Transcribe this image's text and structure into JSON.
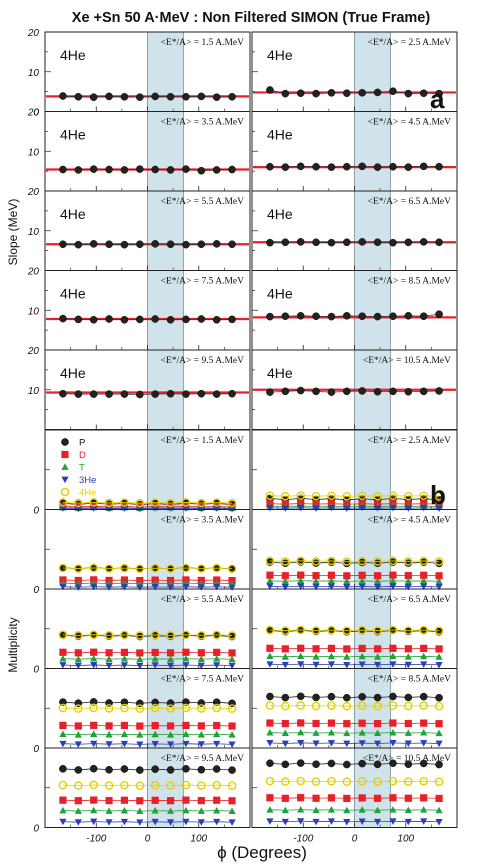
{
  "chart_data": {
    "type": "scatter",
    "title": "Xe +Sn 50 A·MeV : Non Filtered SIMON (True Frame)",
    "xlabel": "ϕ (Degrees)",
    "x_ticks": [
      "-100",
      "0",
      "100"
    ],
    "xlim": [
      -200,
      200
    ],
    "x_values": [
      -165,
      -135,
      -105,
      -75,
      -45,
      -15,
      15,
      45,
      75,
      105,
      135,
      165
    ],
    "shaded_x_range": [
      0,
      70
    ],
    "colors": {
      "P": "#222222",
      "D": "#e8202a",
      "T": "#20a23a",
      "3He": "#2a3fb8",
      "4He": "#e8cf00",
      "fit_line": "#e8202a",
      "shade": "#a9cbd8"
    },
    "slope": {
      "panel_label": "a",
      "ylabel": "Slope (MeV)",
      "ylim": [
        0,
        20
      ],
      "y_ticks": [
        "0",
        "10",
        "20"
      ],
      "particle_label": "4He",
      "panels": [
        {
          "energy": "<E*/A> = 1.5 A.MeV",
          "fit": 3.8,
          "values": [
            3.9,
            3.7,
            3.6,
            3.8,
            3.7,
            3.6,
            3.8,
            3.7,
            3.7,
            3.8,
            3.6,
            3.7
          ]
        },
        {
          "energy": "<E*/A> = 2.5 A.MeV",
          "fit": 4.8,
          "values": [
            5.4,
            4.5,
            4.6,
            4.5,
            4.7,
            4.6,
            4.7,
            4.8,
            5.1,
            4.5,
            4.6,
            4.5
          ]
        },
        {
          "energy": "<E*/A> = 3.5 A.MeV",
          "fit": 5.4,
          "values": [
            5.4,
            5.3,
            5.5,
            5.4,
            5.3,
            5.5,
            5.4,
            5.3,
            5.5,
            5.1,
            5.3,
            5.4
          ]
        },
        {
          "energy": "<E*/A> = 4.5 A.MeV",
          "fit": 6.0,
          "values": [
            6.1,
            6.0,
            6.2,
            6.1,
            6.0,
            6.1,
            6.2,
            6.0,
            6.1,
            6.0,
            6.2,
            6.1
          ]
        },
        {
          "energy": "<E*/A> = 5.5 A.MeV",
          "fit": 6.6,
          "values": [
            6.6,
            6.5,
            6.7,
            6.6,
            6.5,
            6.6,
            6.7,
            6.6,
            6.5,
            6.6,
            6.7,
            6.6
          ]
        },
        {
          "energy": "<E*/A> = 6.5 A.MeV",
          "fit": 7.1,
          "values": [
            7.0,
            7.1,
            7.2,
            7.1,
            7.0,
            7.1,
            7.2,
            7.1,
            7.0,
            7.1,
            7.2,
            7.1
          ]
        },
        {
          "energy": "<E*/A> = 7.5 A.MeV",
          "fit": 7.8,
          "values": [
            7.9,
            7.7,
            7.6,
            7.8,
            7.6,
            7.7,
            7.8,
            7.6,
            7.7,
            7.8,
            7.6,
            7.7
          ]
        },
        {
          "energy": "<E*/A> = 8.5 A.MeV",
          "fit": 8.2,
          "values": [
            8.4,
            8.5,
            8.6,
            8.5,
            8.4,
            8.6,
            8.5,
            8.4,
            8.5,
            8.6,
            8.5,
            9.0
          ]
        },
        {
          "energy": "<E*/A> = 9.5 A.MeV",
          "fit": 9.3,
          "values": [
            9.0,
            8.9,
            8.9,
            8.9,
            8.9,
            8.8,
            8.9,
            9.0,
            8.9,
            9.0,
            8.9,
            9.0
          ]
        },
        {
          "energy": "<E*/A> = 10.5 A.MeV",
          "fit": 10.0,
          "values": [
            9.4,
            9.6,
            9.8,
            9.6,
            9.4,
            9.6,
            9.7,
            9.5,
            9.6,
            9.5,
            9.6,
            9.7
          ]
        }
      ]
    },
    "multiplicity": {
      "panel_label": "b",
      "ylabel": "Multiplicity",
      "ylim": [
        0,
        1
      ],
      "legend": [
        "P",
        "D",
        "T",
        "3He",
        "4He"
      ],
      "panels": [
        {
          "energy": "<E*/A> = 1.5 A.MeV",
          "P": 0.07,
          "D": 0.035,
          "T": 0.02,
          "3He": 0.012,
          "4He": 0.085
        },
        {
          "energy": "<E*/A> = 2.5 A.MeV",
          "P": 0.13,
          "D": 0.07,
          "T": 0.04,
          "3He": 0.018,
          "4He": 0.17
        },
        {
          "energy": "<E*/A> = 3.5 A.MeV",
          "P": 0.26,
          "D": 0.11,
          "T": 0.07,
          "3He": 0.025,
          "4He": 0.26
        },
        {
          "energy": "<E*/A> = 4.5 A.MeV",
          "P": 0.33,
          "D": 0.17,
          "T": 0.1,
          "3He": 0.03,
          "4He": 0.35
        },
        {
          "energy": "<E*/A> = 5.5 A.MeV",
          "P": 0.41,
          "D": 0.2,
          "T": 0.12,
          "3He": 0.04,
          "4He": 0.42
        },
        {
          "energy": "<E*/A> = 6.5 A.MeV",
          "P": 0.47,
          "D": 0.25,
          "T": 0.15,
          "3He": 0.05,
          "4He": 0.48
        },
        {
          "energy": "<E*/A> = 7.5 A.MeV",
          "P": 0.57,
          "D": 0.28,
          "T": 0.17,
          "3He": 0.05,
          "4He": 0.5
        },
        {
          "energy": "<E*/A> = 8.5 A.MeV",
          "P": 0.64,
          "D": 0.31,
          "T": 0.19,
          "3He": 0.06,
          "4He": 0.53
        },
        {
          "energy": "<E*/A> = 9.5 A.MeV",
          "P": 0.73,
          "D": 0.34,
          "T": 0.21,
          "3He": 0.07,
          "4He": 0.53
        },
        {
          "energy": "<E*/A> = 10.5 A.MeV",
          "P": 0.8,
          "D": 0.37,
          "T": 0.22,
          "3He": 0.075,
          "4He": 0.58
        }
      ]
    }
  }
}
